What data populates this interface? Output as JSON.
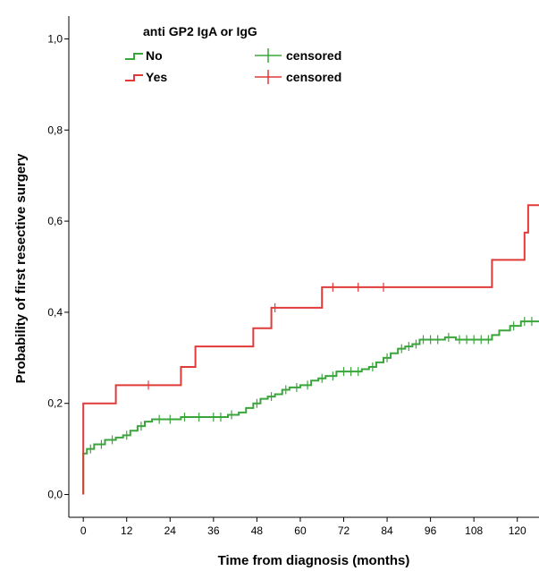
{
  "chart_data": {
    "type": "line",
    "subtype": "kaplan-meier step curves",
    "xlabel": "Time from diagnosis (months)",
    "ylabel": "Probability of first resective surgery",
    "xlim": [
      -4,
      126
    ],
    "ylim": [
      -0.05,
      1.05
    ],
    "x_ticks": [
      0,
      12,
      24,
      36,
      48,
      60,
      72,
      84,
      96,
      108,
      120
    ],
    "y_ticks": [
      0.0,
      0.2,
      0.4,
      0.6,
      0.8,
      1.0
    ],
    "y_tick_labels": [
      "0,0",
      "0,2",
      "0,4",
      "0,6",
      "0,8",
      "1,0"
    ],
    "grid": false,
    "legend": {
      "title": "anti GP2 IgA or IgG",
      "placement": "top-left",
      "entries": [
        {
          "label": "No",
          "censored_label": "censored",
          "color": "#3aa53a"
        },
        {
          "label": "Yes",
          "censored_label": "censored",
          "color": "#e03a3a"
        }
      ]
    },
    "series": [
      {
        "name": "No",
        "color": "#3aa53a",
        "steps": [
          [
            0,
            0.0
          ],
          [
            0,
            0.09
          ],
          [
            1,
            0.1
          ],
          [
            3,
            0.11
          ],
          [
            6,
            0.12
          ],
          [
            9,
            0.125
          ],
          [
            11,
            0.13
          ],
          [
            13,
            0.14
          ],
          [
            15,
            0.15
          ],
          [
            17,
            0.16
          ],
          [
            19,
            0.165
          ],
          [
            27,
            0.17
          ],
          [
            40,
            0.175
          ],
          [
            43,
            0.18
          ],
          [
            45,
            0.19
          ],
          [
            47,
            0.2
          ],
          [
            49,
            0.21
          ],
          [
            51,
            0.215
          ],
          [
            53,
            0.22
          ],
          [
            55,
            0.23
          ],
          [
            57,
            0.235
          ],
          [
            60,
            0.24
          ],
          [
            63,
            0.25
          ],
          [
            65,
            0.255
          ],
          [
            67,
            0.26
          ],
          [
            70,
            0.27
          ],
          [
            77,
            0.275
          ],
          [
            79,
            0.28
          ],
          [
            81,
            0.29
          ],
          [
            83,
            0.3
          ],
          [
            85,
            0.31
          ],
          [
            87,
            0.32
          ],
          [
            89,
            0.325
          ],
          [
            91,
            0.33
          ],
          [
            93,
            0.34
          ],
          [
            100,
            0.345
          ],
          [
            103,
            0.34
          ],
          [
            113,
            0.35
          ],
          [
            115,
            0.36
          ],
          [
            118,
            0.37
          ],
          [
            121,
            0.38
          ],
          [
            126,
            0.38
          ]
        ],
        "censored_x": [
          2,
          5,
          8,
          12,
          16,
          21,
          24,
          28,
          32,
          36,
          38,
          41,
          48,
          52,
          56,
          59,
          62,
          66,
          69,
          72,
          74,
          76,
          80,
          84,
          88,
          90,
          92,
          94,
          96,
          98,
          101,
          104,
          106,
          108,
          110,
          112,
          119,
          122,
          124
        ]
      },
      {
        "name": "Yes",
        "color": "#e03a3a",
        "steps": [
          [
            0,
            0.0
          ],
          [
            0,
            0.2
          ],
          [
            9,
            0.24
          ],
          [
            27,
            0.28
          ],
          [
            31,
            0.325
          ],
          [
            47,
            0.365
          ],
          [
            52,
            0.41
          ],
          [
            66,
            0.455
          ],
          [
            113,
            0.515
          ],
          [
            122,
            0.575
          ],
          [
            123,
            0.635
          ],
          [
            126,
            0.635
          ]
        ],
        "censored_x": [
          18,
          53,
          69,
          76,
          83
        ]
      }
    ]
  }
}
